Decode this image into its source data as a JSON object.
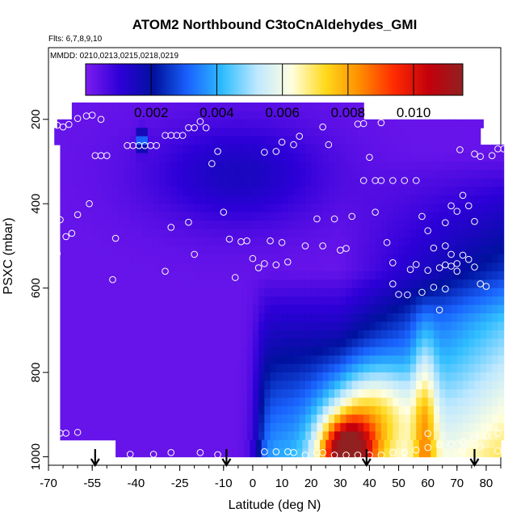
{
  "chart_data": {
    "type": "heatmap",
    "title": "ATOM2 Northbound C3toCnAldehydes_GMI",
    "subtitle_flights": "Flts: 6,7,8,9,10",
    "subtitle_dates": "MMDD: 0210,0213,0215,0218,0219",
    "xlabel": "Latitude (deg N)",
    "ylabel": "PSXC (mbar)",
    "xlim": [
      -70,
      85
    ],
    "ylim": [
      1020,
      30
    ],
    "x_ticks": [
      "-70",
      "-55",
      "-40",
      "-25",
      "-10",
      "0",
      "10",
      "20",
      "30",
      "40",
      "50",
      "60",
      "70",
      "80"
    ],
    "x_tick_values": [
      -70,
      -55,
      -40,
      -25,
      -10,
      0,
      10,
      20,
      30,
      40,
      50,
      60,
      70,
      80
    ],
    "x_minor_step": 5,
    "y_ticks": [
      "200",
      "400",
      "600",
      "800",
      "1000"
    ],
    "y_tick_values": [
      200,
      400,
      600,
      800,
      1000
    ],
    "colorbar": {
      "range": [
        0,
        0.0115
      ],
      "ticks": [
        "0.002",
        "0.004",
        "0.006",
        "0.008",
        "0.010"
      ],
      "tick_values": [
        0.002,
        0.004,
        0.006,
        0.008,
        0.01
      ],
      "colors": [
        "#7d1cf0",
        "#2d00d8",
        "#00119e",
        "#1a64ff",
        "#2fbdff",
        "#bfe8ff",
        "#ffffe0",
        "#ffd91a",
        "#ff8c00",
        "#ff2a00",
        "#c4000c",
        "#912020"
      ]
    },
    "lat_bins_start": -68,
    "lat_bins_step": 2,
    "press_bins": [
      160,
      180,
      200,
      220,
      240,
      260,
      280,
      300,
      320,
      340,
      360,
      380,
      400,
      420,
      440,
      460,
      480,
      500,
      520,
      540,
      560,
      580,
      600,
      620,
      640,
      660,
      680,
      700,
      720,
      740,
      760,
      780,
      800,
      820,
      840,
      860,
      880,
      900,
      920,
      940,
      960,
      980,
      1000
    ],
    "field_description_features": "low values in south and aloft, high values near surface 25-40N",
    "arrows_latitude": [
      -54,
      -9,
      39,
      76
    ],
    "observation_points": [
      [
        -67,
        214
      ],
      [
        -65,
        218
      ],
      [
        -63,
        212
      ],
      [
        -60,
        198
      ],
      [
        -57,
        192
      ],
      [
        -55,
        190
      ],
      [
        -52,
        200
      ],
      [
        -54,
        286
      ],
      [
        -52,
        286
      ],
      [
        -50,
        286
      ],
      [
        -56,
        400
      ],
      [
        -60,
        426
      ],
      [
        -66,
        438
      ],
      [
        -64,
        478
      ],
      [
        -62,
        470
      ],
      [
        -67,
        518
      ],
      [
        -66,
        944
      ],
      [
        -64,
        944
      ],
      [
        -60,
        942
      ],
      [
        -47,
        482
      ],
      [
        -48,
        580
      ],
      [
        -43,
        262
      ],
      [
        -41,
        262
      ],
      [
        -39,
        262
      ],
      [
        -37,
        262
      ],
      [
        -35,
        262
      ],
      [
        -33,
        262
      ],
      [
        -30,
        238
      ],
      [
        -28,
        238
      ],
      [
        -26,
        238
      ],
      [
        -24,
        238
      ],
      [
        -22,
        220
      ],
      [
        -20,
        220
      ],
      [
        -18,
        205
      ],
      [
        -16,
        220
      ],
      [
        -14,
        305
      ],
      [
        -12,
        276
      ],
      [
        -10,
        420
      ],
      [
        -8,
        484
      ],
      [
        -30,
        560
      ],
      [
        -28,
        456
      ],
      [
        -22,
        444
      ],
      [
        -20,
        520
      ],
      [
        -12,
        995
      ],
      [
        -6,
        575
      ],
      [
        -4,
        490
      ],
      [
        -2,
        488
      ],
      [
        0,
        530
      ],
      [
        2,
        552
      ],
      [
        4,
        542
      ],
      [
        6,
        488
      ],
      [
        8,
        545
      ],
      [
        10,
        492
      ],
      [
        12,
        538
      ],
      [
        4,
        278
      ],
      [
        10,
        254
      ],
      [
        14,
        260
      ],
      [
        16,
        240
      ],
      [
        8,
        276
      ],
      [
        18,
        500
      ],
      [
        22,
        436
      ],
      [
        24,
        500
      ],
      [
        28,
        436
      ],
      [
        30,
        510
      ],
      [
        32,
        506
      ],
      [
        34,
        430
      ],
      [
        36,
        211
      ],
      [
        38,
        210
      ],
      [
        44,
        208
      ],
      [
        24,
        218
      ],
      [
        26,
        260
      ],
      [
        38,
        345
      ],
      [
        40,
        290
      ],
      [
        42,
        345
      ],
      [
        44,
        345
      ],
      [
        48,
        345
      ],
      [
        52,
        345
      ],
      [
        56,
        345
      ],
      [
        58,
        430
      ],
      [
        60,
        558
      ],
      [
        62,
        505
      ],
      [
        64,
        552
      ],
      [
        66,
        500
      ],
      [
        68,
        405
      ],
      [
        70,
        418
      ],
      [
        72,
        380
      ],
      [
        74,
        405
      ],
      [
        76,
        550
      ],
      [
        78,
        590
      ],
      [
        80,
        596
      ],
      [
        66,
        445
      ],
      [
        68,
        520
      ],
      [
        70,
        560
      ],
      [
        72,
        522
      ],
      [
        74,
        532
      ],
      [
        76,
        442
      ],
      [
        78,
        288
      ],
      [
        82,
        286
      ],
      [
        84,
        270
      ],
      [
        86,
        270
      ],
      [
        48,
        590
      ],
      [
        50,
        615
      ],
      [
        53,
        616
      ],
      [
        58,
        610
      ],
      [
        62,
        598
      ],
      [
        64,
        652
      ],
      [
        66,
        602
      ],
      [
        71,
        272
      ],
      [
        76,
        282
      ],
      [
        42,
        420
      ],
      [
        46,
        492
      ],
      [
        48,
        540
      ],
      [
        54,
        556
      ],
      [
        56,
        544
      ],
      [
        60,
        464
      ],
      [
        66,
        545
      ],
      [
        68,
        548
      ],
      [
        70,
        542
      ],
      [
        24,
        990
      ],
      [
        28,
        996
      ],
      [
        32,
        996
      ],
      [
        36,
        996
      ],
      [
        40,
        996
      ],
      [
        44,
        996
      ],
      [
        48,
        990
      ],
      [
        52,
        990
      ],
      [
        56,
        984
      ],
      [
        60,
        978
      ],
      [
        64,
        972
      ],
      [
        68,
        970
      ],
      [
        72,
        964
      ],
      [
        76,
        956
      ],
      [
        80,
        950
      ],
      [
        84,
        944
      ],
      [
        60,
        945
      ],
      [
        22,
        990
      ],
      [
        14,
        990
      ],
      [
        12,
        988
      ],
      [
        8,
        988
      ],
      [
        4,
        988
      ],
      [
        -18,
        990
      ],
      [
        -28,
        990
      ],
      [
        -34,
        994
      ],
      [
        -42,
        994
      ],
      [
        -50,
        994
      ],
      [
        -64,
        978
      ],
      [
        -66,
        988
      ],
      [
        18,
        996
      ],
      [
        72,
        982
      ],
      [
        78,
        976
      ],
      [
        84,
        986
      ]
    ]
  },
  "accent_color": "#000000"
}
